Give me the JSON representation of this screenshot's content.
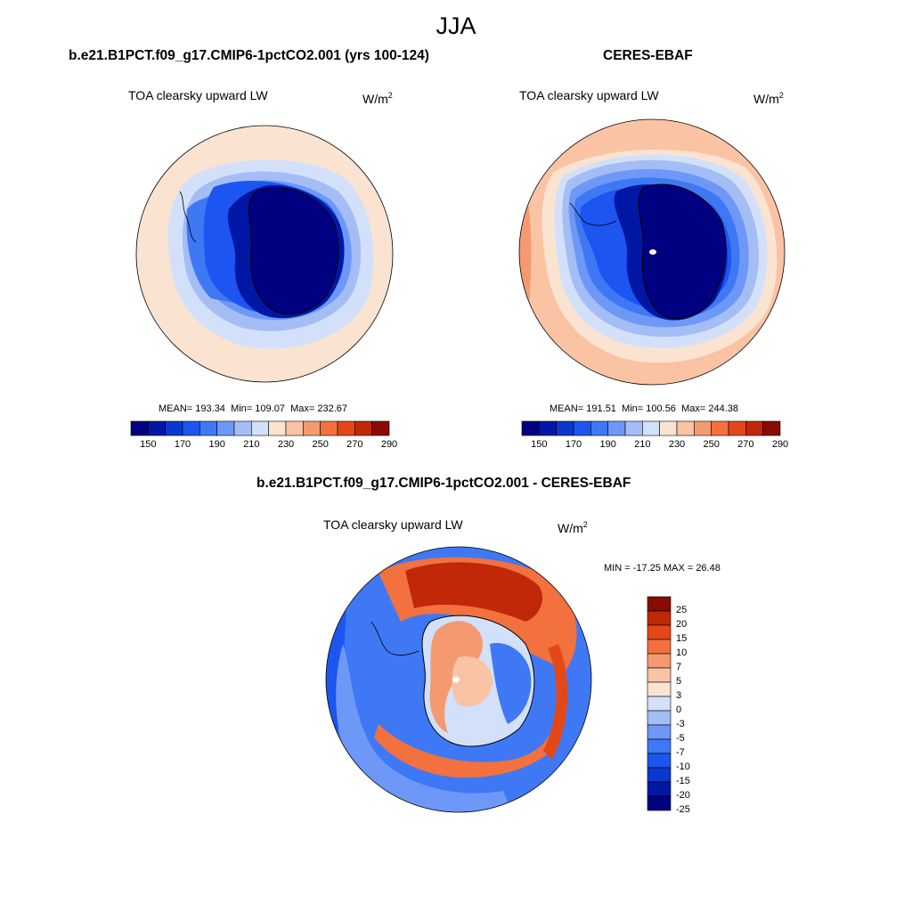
{
  "season": "JJA",
  "colors": {
    "abs_levels": [
      "#000080",
      "#0017a6",
      "#0a38cc",
      "#1c55f0",
      "#3f78f5",
      "#6d98f7",
      "#a4bdf5",
      "#d2e0fa",
      "#fbe3d2",
      "#f9c3a4",
      "#f59a70",
      "#f2713f",
      "#e44817",
      "#c02807",
      "#8b0a00"
    ],
    "diff_levels": [
      "#000080",
      "#0017a6",
      "#0a38cc",
      "#1c55f0",
      "#3f78f5",
      "#6d98f7",
      "#a4bdf5",
      "#d2e0fa",
      "#fbe3d2",
      "#f9c3a4",
      "#f59a70",
      "#f2713f",
      "#e44817",
      "#c02807",
      "#8b0a00"
    ]
  },
  "panels": {
    "model": {
      "title": "b.e21.B1PCT.f09_g17.CMIP6-1pctCO2.001 (yrs 100-124)",
      "variable": "TOA clearsky upward LW",
      "units": "W/m",
      "units_exp": "2",
      "mean_label": "MEAN=",
      "mean": "193.34",
      "min_label": "Min=",
      "min": "109.07",
      "max_label": "Max=",
      "max": "232.67"
    },
    "obs": {
      "title": "CERES-EBAF",
      "variable": "TOA clearsky upward LW",
      "units": "W/m",
      "units_exp": "2",
      "mean_label": "MEAN=",
      "mean": "191.51",
      "min_label": "Min=",
      "min": "100.56",
      "max_label": "Max=",
      "max": "244.38"
    },
    "diff": {
      "title": "b.e21.B1PCT.f09_g17.CMIP6-1pctCO2.001 - CERES-EBAF",
      "variable": "TOA clearsky upward LW",
      "units": "W/m",
      "units_exp": "2",
      "minmax_text": "MIN = -17.25 MAX =  26.48"
    }
  },
  "abs_colorbar_ticks": [
    "150",
    "170",
    "190",
    "210",
    "230",
    "250",
    "270",
    "290"
  ],
  "diff_colorbar_ticks": [
    "25",
    "20",
    "15",
    "10",
    "7",
    "5",
    "3",
    "0",
    "-3",
    "-5",
    "-7",
    "-10",
    "-15",
    "-20",
    "-25"
  ]
}
